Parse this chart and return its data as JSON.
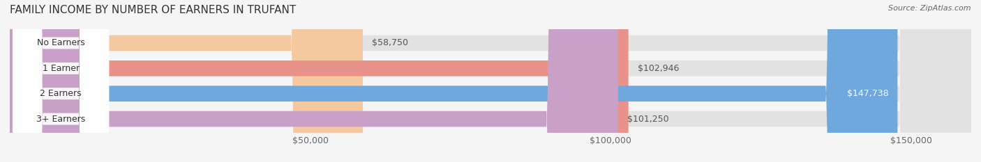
{
  "title": "FAMILY INCOME BY NUMBER OF EARNERS IN TRUFANT",
  "source": "Source: ZipAtlas.com",
  "categories": [
    "No Earners",
    "1 Earner",
    "2 Earners",
    "3+ Earners"
  ],
  "values": [
    58750,
    102946,
    147738,
    101250
  ],
  "bar_colors": [
    "#f5c9a0",
    "#e8928a",
    "#6fa8dc",
    "#c9a0c8"
  ],
  "label_colors": [
    "#555555",
    "#555555",
    "#ffffff",
    "#555555"
  ],
  "xlim": [
    0,
    160000
  ],
  "xticks": [
    50000,
    100000,
    150000
  ],
  "xtick_labels": [
    "$50,000",
    "$100,000",
    "$150,000"
  ],
  "background_color": "#f0f0f0",
  "bar_background_color": "#e8e8e8",
  "title_fontsize": 11,
  "tick_fontsize": 9,
  "label_fontsize": 9,
  "category_fontsize": 9,
  "value_labels": [
    "$58,750",
    "$102,946",
    "$147,738",
    "$101,250"
  ]
}
